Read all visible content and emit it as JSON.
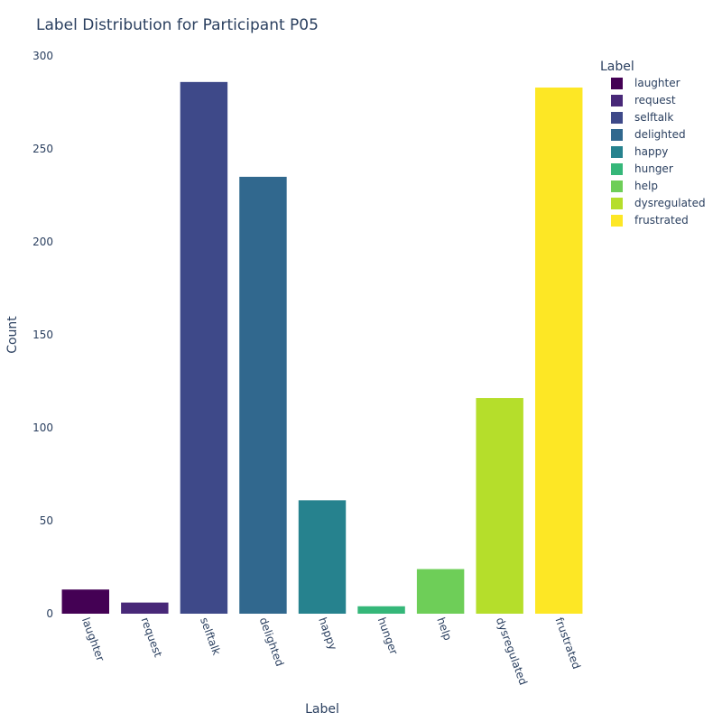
{
  "chart_data": {
    "type": "bar",
    "title": "Label Distribution for Participant P05",
    "xlabel": "Label",
    "ylabel": "Count",
    "ylim": [
      0,
      300
    ],
    "yticks": [
      0,
      50,
      100,
      150,
      200,
      250,
      300
    ],
    "grid": false,
    "categories": [
      "laughter",
      "request",
      "selftalk",
      "delighted",
      "happy",
      "hunger",
      "help",
      "dysregulated",
      "frustrated"
    ],
    "values": [
      13,
      6,
      286,
      235,
      61,
      4,
      24,
      116,
      283
    ],
    "colors": [
      "#440154",
      "#482878",
      "#3e4989",
      "#31688e",
      "#26828e",
      "#35b779",
      "#6ece58",
      "#b5de2b",
      "#fde725"
    ],
    "legend": {
      "title": "Label",
      "placement": "top-right",
      "entries": [
        "laughter",
        "request",
        "selftalk",
        "delighted",
        "happy",
        "hunger",
        "help",
        "dysregulated",
        "frustrated"
      ]
    }
  }
}
